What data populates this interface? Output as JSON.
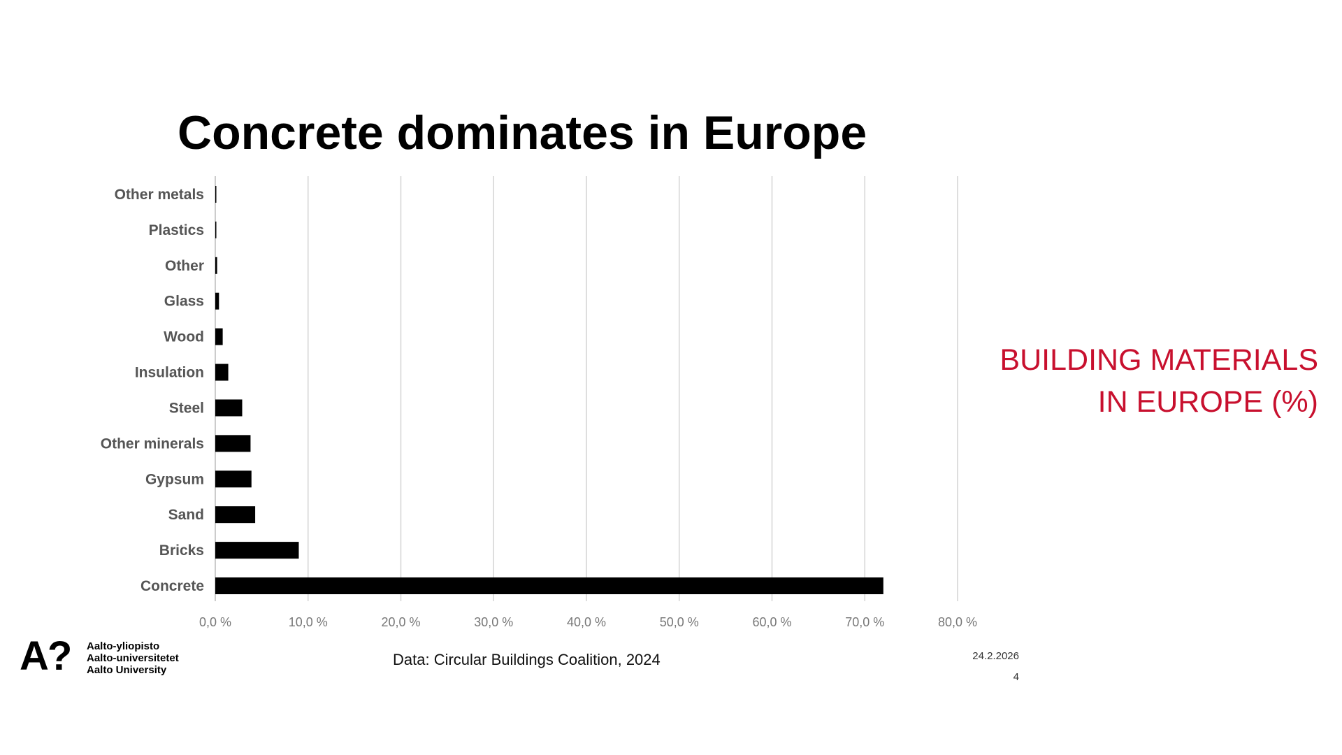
{
  "slide": {
    "title": "Concrete dominates in Europe",
    "side_note": [
      "BUILDING MATERIALS",
      "IN EUROPE (%)"
    ],
    "source": "Data: Circular Buildings Coalition, 2024",
    "date": "24.2.2026",
    "page_number": "4",
    "accent_color": "#c8102e"
  },
  "logo": {
    "mark": "A?",
    "names": [
      "Aalto-yliopisto",
      "Aalto-universitetet",
      "Aalto University"
    ]
  },
  "chart_data": {
    "type": "bar",
    "orientation": "horizontal",
    "categories": [
      "Other metals",
      "Plastics",
      "Other",
      "Glass",
      "Wood",
      "Insulation",
      "Steel",
      "Other minerals",
      "Gypsum",
      "Sand",
      "Bricks",
      "Concrete"
    ],
    "values": [
      0.1,
      0.1,
      0.2,
      0.4,
      0.8,
      1.4,
      2.9,
      3.8,
      3.9,
      4.3,
      9.0,
      72.0
    ],
    "xlim": [
      0,
      80
    ],
    "xticks": [
      0,
      10,
      20,
      30,
      40,
      50,
      60,
      70,
      80
    ],
    "xtick_labels": [
      "0,0 %",
      "10,0 %",
      "20,0 %",
      "30,0 %",
      "40,0 %",
      "50,0 %",
      "60,0 %",
      "70,0 %",
      "80,0 %"
    ],
    "grid": "vertical",
    "bar_color": "#000000",
    "grid_color": "#d4d4d4",
    "label_color": "#555555"
  }
}
